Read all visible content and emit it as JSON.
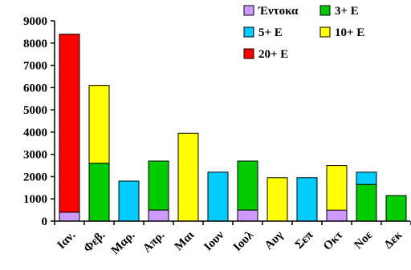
{
  "chart_data": {
    "type": "bar",
    "stacked": true,
    "categories": [
      "Ιαν.",
      "Φεβ.",
      "Μαρ.",
      "Απρ.",
      "Μαι",
      "Ιουν",
      "Ιουλ",
      "Αυγ",
      "Σεπ",
      "Οκτ",
      "Νοε",
      "Δεκ"
    ],
    "ylim": [
      0,
      9000
    ],
    "yticks": [
      0,
      1000,
      2000,
      3000,
      4000,
      5000,
      6000,
      7000,
      8000,
      9000
    ],
    "grid": false,
    "legend_position": "top-right",
    "series": [
      {
        "name": "Έντοκα",
        "color": "#cc99ff",
        "values": [
          400,
          0,
          0,
          500,
          0,
          0,
          500,
          0,
          0,
          500,
          0,
          0
        ]
      },
      {
        "name": "3+ Ε",
        "color": "#00cc00",
        "values": [
          0,
          2600,
          0,
          2200,
          0,
          0,
          2200,
          0,
          0,
          0,
          1650,
          1150
        ]
      },
      {
        "name": "5+ Ε",
        "color": "#00ccff",
        "values": [
          0,
          0,
          1800,
          0,
          0,
          2200,
          0,
          0,
          1950,
          0,
          550,
          0
        ]
      },
      {
        "name": "10+ Ε",
        "color": "#ffff00",
        "values": [
          0,
          3500,
          0,
          0,
          3950,
          0,
          0,
          1950,
          0,
          2000,
          0,
          0
        ]
      },
      {
        "name": "20+ Ε",
        "color": "#ff0000",
        "values": [
          8000,
          0,
          0,
          0,
          0,
          0,
          0,
          0,
          0,
          0,
          0,
          0
        ]
      }
    ]
  }
}
